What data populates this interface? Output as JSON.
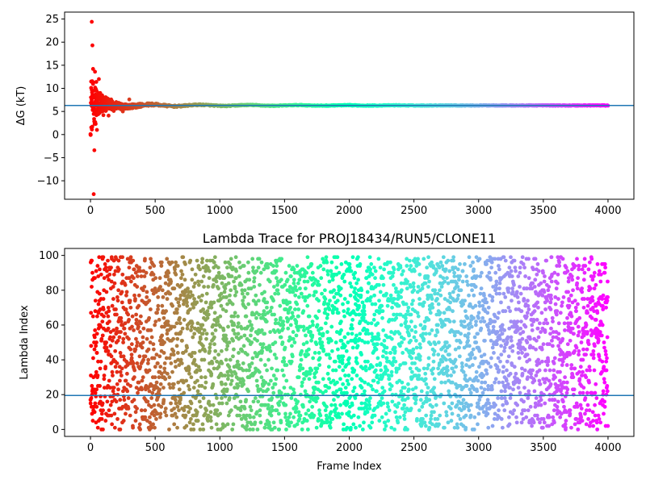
{
  "chart_data": [
    {
      "type": "scatter",
      "title": "",
      "xlabel": "",
      "ylabel": "ΔG (kT)",
      "xlim": [
        -200,
        4200
      ],
      "ylim": [
        -14,
        26.5
      ],
      "xticks": [
        "0",
        "500",
        "1000",
        "1500",
        "2000",
        "2500",
        "3000",
        "3500",
        "4000"
      ],
      "yticks": [
        "−10",
        "−5",
        "0",
        "5",
        "10",
        "15",
        "20",
        "25"
      ],
      "hline": 6.3,
      "colormap": "rainbow",
      "series": [
        {
          "x": [
            0,
            5,
            10,
            15,
            20,
            25,
            30,
            35,
            40,
            45,
            50,
            55,
            60,
            65,
            70,
            75,
            80,
            90,
            100,
            120,
            140,
            160,
            180,
            200,
            250,
            300,
            350,
            400,
            450,
            500,
            600,
            700,
            800,
            1000,
            1200,
            1500,
            2000,
            2500,
            3000,
            3500,
            4000
          ],
          "y": [
            0.1,
            10.1,
            24.4,
            19.3,
            14.2,
            -12.9,
            -3.4,
            13.6,
            2.3,
            11.4,
            1.0,
            7.9,
            4.4,
            12.0,
            5.1,
            9.0,
            5.6,
            8.5,
            4.2,
            6.5,
            4.1,
            7.6,
            5.1,
            6.9,
            5.0,
            7.6,
            5.2,
            6.8,
            5.9,
            7.2,
            6.0,
            6.4,
            6.6,
            6.1,
            6.5,
            6.1,
            6.3,
            6.2,
            6.3,
            6.3,
            6.3
          ]
        }
      ]
    },
    {
      "type": "scatter",
      "title": "Lambda Trace for PROJ18434/RUN5/CLONE11",
      "xlabel": "Frame Index",
      "ylabel": "Lambda Index",
      "xlim": [
        -200,
        4200
      ],
      "ylim": [
        -4,
        104
      ],
      "xticks": [
        "0",
        "500",
        "1000",
        "1500",
        "2000",
        "2500",
        "3000",
        "3500",
        "4000"
      ],
      "yticks": [
        "0",
        "20",
        "40",
        "60",
        "80",
        "100"
      ],
      "hline": 19.5,
      "colormap": "rainbow",
      "n_frames": 4000,
      "note_values": "Lambda index is uniformly scattered between 0 and 99 across all 4000 frames"
    }
  ]
}
